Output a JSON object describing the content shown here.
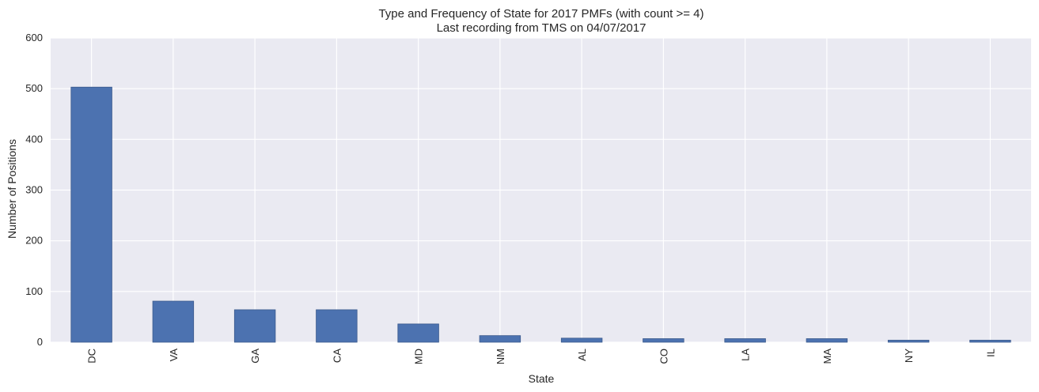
{
  "chart_data": {
    "type": "bar",
    "title": "Type and Frequency of State for 2017 PMFs (with count >= 4)",
    "subtitle": "Last recording from TMS on 04/07/2017",
    "xlabel": "State",
    "ylabel": "Number of Positions",
    "categories": [
      "DC",
      "VA",
      "GA",
      "CA",
      "MD",
      "NM",
      "AL",
      "CO",
      "LA",
      "MA",
      "NY",
      "IL"
    ],
    "values": [
      503,
      81,
      64,
      64,
      36,
      13,
      8,
      7,
      7,
      7,
      4,
      4
    ],
    "ylim": [
      0,
      600
    ],
    "yticks": [
      "0",
      "100",
      "200",
      "300",
      "400",
      "500",
      "600"
    ],
    "grid": true,
    "legend": "none",
    "colors": {
      "bar": "#4c72b0",
      "background": "#eaeaf2",
      "grid": "#ffffff"
    }
  }
}
